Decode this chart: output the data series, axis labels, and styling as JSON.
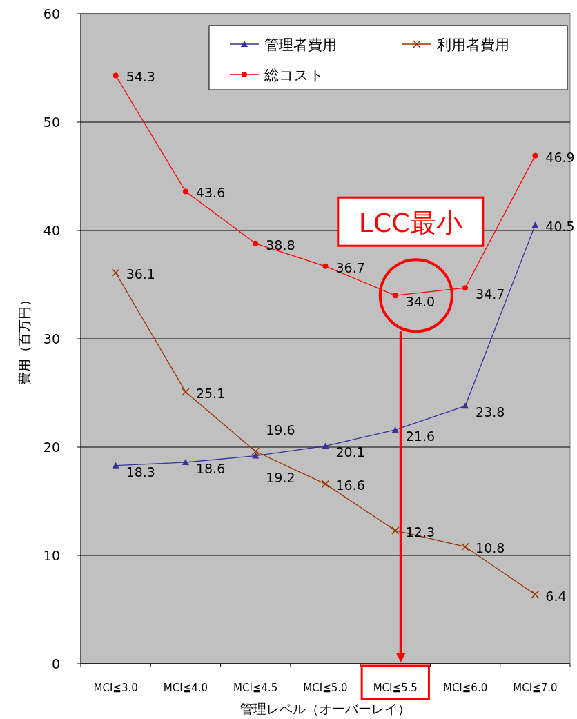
{
  "chart_data": {
    "type": "line",
    "xlabel": "管理レベル（オーバーレイ）",
    "ylabel": "費用（百万円）",
    "categories": [
      "MCI≦3.0",
      "MCI≦4.0",
      "MCI≦4.5",
      "MCI≦5.0",
      "MCI≦5.5",
      "MCI≦6.0",
      "MCI≦7.0"
    ],
    "series": [
      {
        "name": "管理者費用",
        "color": "#333399",
        "marker": "triangle",
        "values": [
          18.3,
          18.6,
          19.2,
          20.1,
          21.6,
          23.8,
          40.5
        ],
        "value_labels": [
          "18.3",
          "18.6",
          "19.2",
          "20.1",
          "21.6",
          "23.8",
          "40.5"
        ]
      },
      {
        "name": "利用者費用",
        "color": "#993300",
        "marker": "cross",
        "values": [
          36.1,
          25.1,
          19.6,
          16.6,
          12.3,
          10.8,
          6.4
        ],
        "value_labels": [
          "36.1",
          "25.1",
          "19.6",
          "16.6",
          "12.3",
          "10.8",
          "6.4"
        ]
      },
      {
        "name": "総コスト",
        "color": "#ff0000",
        "marker": "circle",
        "values": [
          54.3,
          43.6,
          38.8,
          36.7,
          34.0,
          34.7,
          46.9
        ],
        "value_labels": [
          "54.3",
          "43.6",
          "38.8",
          "36.7",
          "34.0",
          "34.7",
          "46.9"
        ]
      }
    ],
    "ylim": [
      0,
      60
    ],
    "yticks": [
      0,
      10,
      20,
      30,
      40,
      50,
      60
    ],
    "grid": "y",
    "legend": "top right",
    "annotations": [
      {
        "text": "LCC最小",
        "x": "MCI≦5.5",
        "y": 34.0
      }
    ]
  }
}
